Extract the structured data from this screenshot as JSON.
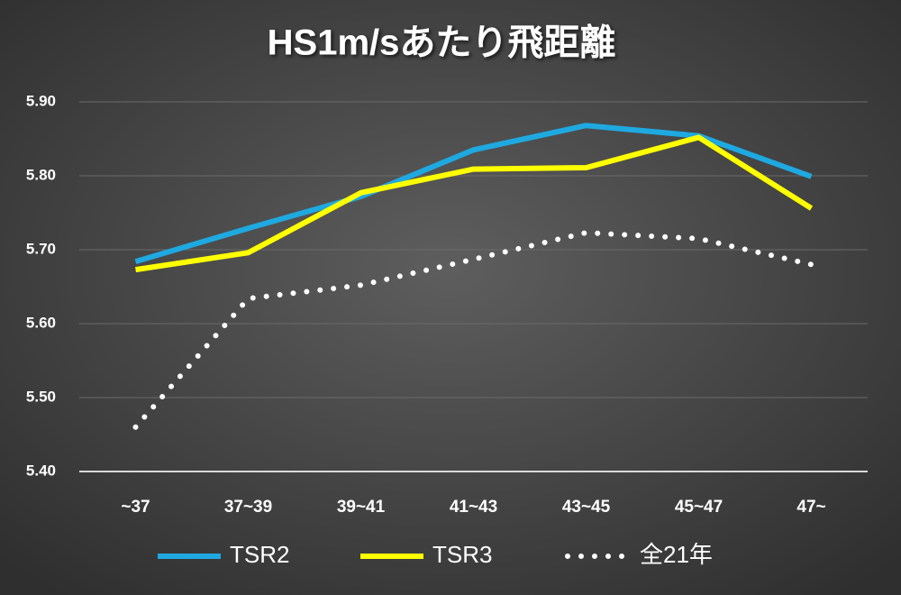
{
  "chart_data": {
    "type": "line",
    "title": "HS1m/sあたり飛距離",
    "categories": [
      "~37",
      "37~39",
      "39~41",
      "41~43",
      "43~45",
      "45~47",
      "47~"
    ],
    "series": [
      {
        "name": "TSR2",
        "color": "#1ea9e1",
        "values": [
          5.684,
          5.729,
          5.772,
          5.835,
          5.868,
          5.854,
          5.799
        ]
      },
      {
        "name": "TSR3",
        "color": "#ffff00",
        "values": [
          5.673,
          5.696,
          5.777,
          5.809,
          5.811,
          5.852,
          5.756
        ]
      },
      {
        "name": "全21年",
        "color": "#ffffff",
        "values": [
          5.46,
          5.634,
          5.652,
          5.687,
          5.723,
          5.715,
          5.68
        ]
      }
    ],
    "ylim": [
      5.4,
      5.9
    ],
    "yticks": [
      {
        "value": 5.4,
        "label": "5.40"
      },
      {
        "value": 5.5,
        "label": "5.50"
      },
      {
        "value": 5.6,
        "label": "5.60"
      },
      {
        "value": 5.7,
        "label": "5.70"
      },
      {
        "value": 5.8,
        "label": "5.80"
      },
      {
        "value": 5.9,
        "label": "5.90"
      }
    ],
    "grid": true
  }
}
